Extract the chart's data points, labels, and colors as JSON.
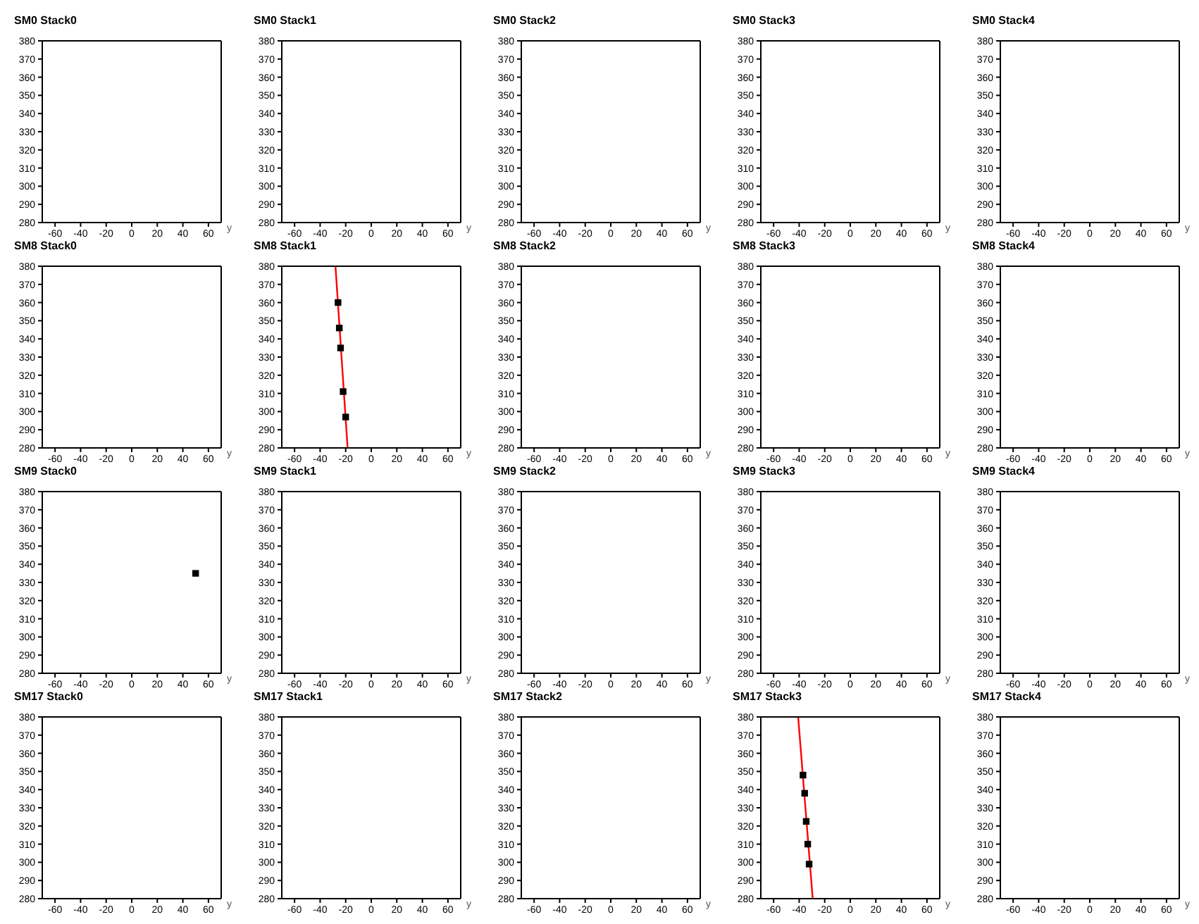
{
  "chart_data": [
    {
      "type": "scatter",
      "title": "SM0 Stack0",
      "xlabel": "y",
      "xlim": [
        -70,
        70
      ],
      "xticks": [
        -60,
        -40,
        -20,
        0,
        20,
        40,
        60
      ],
      "ylim": [
        280,
        380
      ],
      "yticks": [
        280,
        290,
        300,
        310,
        320,
        330,
        340,
        350,
        360,
        370,
        380
      ],
      "grid": false,
      "legend": false
    },
    {
      "type": "scatter",
      "title": "SM0 Stack1",
      "xlabel": "y",
      "xlim": [
        -70,
        70
      ],
      "xticks": [
        -60,
        -40,
        -20,
        0,
        20,
        40,
        60
      ],
      "ylim": [
        280,
        380
      ],
      "yticks": [
        280,
        290,
        300,
        310,
        320,
        330,
        340,
        350,
        360,
        370,
        380
      ],
      "grid": false,
      "legend": false
    },
    {
      "type": "scatter",
      "title": "SM0 Stack2",
      "xlabel": "y",
      "xlim": [
        -70,
        70
      ],
      "xticks": [
        -60,
        -40,
        -20,
        0,
        20,
        40,
        60
      ],
      "ylim": [
        280,
        380
      ],
      "yticks": [
        280,
        290,
        300,
        310,
        320,
        330,
        340,
        350,
        360,
        370,
        380
      ],
      "grid": false,
      "legend": false
    },
    {
      "type": "scatter",
      "title": "SM0 Stack3",
      "xlabel": "y",
      "xlim": [
        -70,
        70
      ],
      "xticks": [
        -60,
        -40,
        -20,
        0,
        20,
        40,
        60
      ],
      "ylim": [
        280,
        380
      ],
      "yticks": [
        280,
        290,
        300,
        310,
        320,
        330,
        340,
        350,
        360,
        370,
        380
      ],
      "grid": false,
      "legend": false
    },
    {
      "type": "scatter",
      "title": "SM0 Stack4",
      "xlabel": "y",
      "xlim": [
        -70,
        70
      ],
      "xticks": [
        -60,
        -40,
        -20,
        0,
        20,
        40,
        60
      ],
      "ylim": [
        280,
        380
      ],
      "yticks": [
        280,
        290,
        300,
        310,
        320,
        330,
        340,
        350,
        360,
        370,
        380
      ],
      "grid": false,
      "legend": false
    },
    {
      "type": "scatter",
      "title": "SM8 Stack0",
      "xlabel": "y",
      "xlim": [
        -70,
        70
      ],
      "xticks": [
        -60,
        -40,
        -20,
        0,
        20,
        40,
        60
      ],
      "ylim": [
        280,
        380
      ],
      "yticks": [
        280,
        290,
        300,
        310,
        320,
        330,
        340,
        350,
        360,
        370,
        380
      ],
      "grid": false,
      "legend": false
    },
    {
      "type": "scatter",
      "title": "SM8 Stack1",
      "xlabel": "y",
      "xlim": [
        -70,
        70
      ],
      "xticks": [
        -60,
        -40,
        -20,
        0,
        20,
        40,
        60
      ],
      "ylim": [
        280,
        380
      ],
      "yticks": [
        280,
        290,
        300,
        310,
        320,
        330,
        340,
        350,
        360,
        370,
        380
      ],
      "grid": false,
      "legend": false,
      "series": [
        {
          "type": "scatter",
          "color": "#000000",
          "marker": "square",
          "x": [
            -26,
            -25,
            -24,
            -22,
            -20
          ],
          "values": [
            360,
            346,
            335,
            311,
            297
          ]
        },
        {
          "type": "line",
          "color": "#ff0000",
          "marker": "none",
          "line_style": "solid",
          "x": [
            -28,
            -18.5
          ],
          "values": [
            380,
            280
          ]
        }
      ]
    },
    {
      "type": "scatter",
      "title": "SM8 Stack2",
      "xlabel": "y",
      "xlim": [
        -70,
        70
      ],
      "xticks": [
        -60,
        -40,
        -20,
        0,
        20,
        40,
        60
      ],
      "ylim": [
        280,
        380
      ],
      "yticks": [
        280,
        290,
        300,
        310,
        320,
        330,
        340,
        350,
        360,
        370,
        380
      ],
      "grid": false,
      "legend": false
    },
    {
      "type": "scatter",
      "title": "SM8 Stack3",
      "xlabel": "y",
      "xlim": [
        -70,
        70
      ],
      "xticks": [
        -60,
        -40,
        -20,
        0,
        20,
        40,
        60
      ],
      "ylim": [
        280,
        380
      ],
      "yticks": [
        280,
        290,
        300,
        310,
        320,
        330,
        340,
        350,
        360,
        370,
        380
      ],
      "grid": false,
      "legend": false
    },
    {
      "type": "scatter",
      "title": "SM8 Stack4",
      "xlabel": "y",
      "xlim": [
        -70,
        70
      ],
      "xticks": [
        -60,
        -40,
        -20,
        0,
        20,
        40,
        60
      ],
      "ylim": [
        280,
        380
      ],
      "yticks": [
        280,
        290,
        300,
        310,
        320,
        330,
        340,
        350,
        360,
        370,
        380
      ],
      "grid": false,
      "legend": false
    },
    {
      "type": "scatter",
      "title": "SM9 Stack0",
      "xlabel": "y",
      "xlim": [
        -70,
        70
      ],
      "xticks": [
        -60,
        -40,
        -20,
        0,
        20,
        40,
        60
      ],
      "ylim": [
        280,
        380
      ],
      "yticks": [
        280,
        290,
        300,
        310,
        320,
        330,
        340,
        350,
        360,
        370,
        380
      ],
      "grid": false,
      "legend": false,
      "series": [
        {
          "type": "scatter",
          "color": "#000000",
          "marker": "square",
          "x": [
            50
          ],
          "values": [
            335
          ]
        }
      ]
    },
    {
      "type": "scatter",
      "title": "SM9 Stack1",
      "xlabel": "y",
      "xlim": [
        -70,
        70
      ],
      "xticks": [
        -60,
        -40,
        -20,
        0,
        20,
        40,
        60
      ],
      "ylim": [
        280,
        380
      ],
      "yticks": [
        280,
        290,
        300,
        310,
        320,
        330,
        340,
        350,
        360,
        370,
        380
      ],
      "grid": false,
      "legend": false
    },
    {
      "type": "scatter",
      "title": "SM9 Stack2",
      "xlabel": "y",
      "xlim": [
        -70,
        70
      ],
      "xticks": [
        -60,
        -40,
        -20,
        0,
        20,
        40,
        60
      ],
      "ylim": [
        280,
        380
      ],
      "yticks": [
        280,
        290,
        300,
        310,
        320,
        330,
        340,
        350,
        360,
        370,
        380
      ],
      "grid": false,
      "legend": false
    },
    {
      "type": "scatter",
      "title": "SM9 Stack3",
      "xlabel": "y",
      "xlim": [
        -70,
        70
      ],
      "xticks": [
        -60,
        -40,
        -20,
        0,
        20,
        40,
        60
      ],
      "ylim": [
        280,
        380
      ],
      "yticks": [
        280,
        290,
        300,
        310,
        320,
        330,
        340,
        350,
        360,
        370,
        380
      ],
      "grid": false,
      "legend": false
    },
    {
      "type": "scatter",
      "title": "SM9 Stack4",
      "xlabel": "y",
      "xlim": [
        -70,
        70
      ],
      "xticks": [
        -60,
        -40,
        -20,
        0,
        20,
        40,
        60
      ],
      "ylim": [
        280,
        380
      ],
      "yticks": [
        280,
        290,
        300,
        310,
        320,
        330,
        340,
        350,
        360,
        370,
        380
      ],
      "grid": false,
      "legend": false
    },
    {
      "type": "scatter",
      "title": "SM17 Stack0",
      "xlabel": "y",
      "xlim": [
        -70,
        70
      ],
      "xticks": [
        -60,
        -40,
        -20,
        0,
        20,
        40,
        60
      ],
      "ylim": [
        280,
        380
      ],
      "yticks": [
        280,
        290,
        300,
        310,
        320,
        330,
        340,
        350,
        360,
        370,
        380
      ],
      "grid": false,
      "legend": false
    },
    {
      "type": "scatter",
      "title": "SM17 Stack1",
      "xlabel": "y",
      "xlim": [
        -70,
        70
      ],
      "xticks": [
        -60,
        -40,
        -20,
        0,
        20,
        40,
        60
      ],
      "ylim": [
        280,
        380
      ],
      "yticks": [
        280,
        290,
        300,
        310,
        320,
        330,
        340,
        350,
        360,
        370,
        380
      ],
      "grid": false,
      "legend": false
    },
    {
      "type": "scatter",
      "title": "SM17 Stack2",
      "xlabel": "y",
      "xlim": [
        -70,
        70
      ],
      "xticks": [
        -60,
        -40,
        -20,
        0,
        20,
        40,
        60
      ],
      "ylim": [
        280,
        380
      ],
      "yticks": [
        280,
        290,
        300,
        310,
        320,
        330,
        340,
        350,
        360,
        370,
        380
      ],
      "grid": false,
      "legend": false
    },
    {
      "type": "scatter",
      "title": "SM17 Stack3",
      "xlabel": "y",
      "xlim": [
        -70,
        70
      ],
      "xticks": [
        -60,
        -40,
        -20,
        0,
        20,
        40,
        60
      ],
      "ylim": [
        280,
        380
      ],
      "yticks": [
        280,
        290,
        300,
        310,
        320,
        330,
        340,
        350,
        360,
        370,
        380
      ],
      "grid": false,
      "legend": false,
      "series": [
        {
          "type": "scatter",
          "color": "#000000",
          "marker": "square",
          "x": [
            -37,
            -35.7,
            -34.5,
            -33.3,
            -32.2
          ],
          "values": [
            348,
            338,
            322.5,
            310,
            299
          ]
        },
        {
          "type": "line",
          "color": "#ff0000",
          "marker": "none",
          "line_style": "solid",
          "x": [
            -40.8,
            -29.4
          ],
          "values": [
            380,
            280
          ]
        }
      ]
    },
    {
      "type": "scatter",
      "title": "SM17 Stack4",
      "xlabel": "y",
      "xlim": [
        -70,
        70
      ],
      "xticks": [
        -60,
        -40,
        -20,
        0,
        20,
        40,
        60
      ],
      "ylim": [
        280,
        380
      ],
      "yticks": [
        280,
        290,
        300,
        310,
        320,
        330,
        340,
        350,
        360,
        370,
        380
      ],
      "grid": false,
      "legend": false
    }
  ]
}
